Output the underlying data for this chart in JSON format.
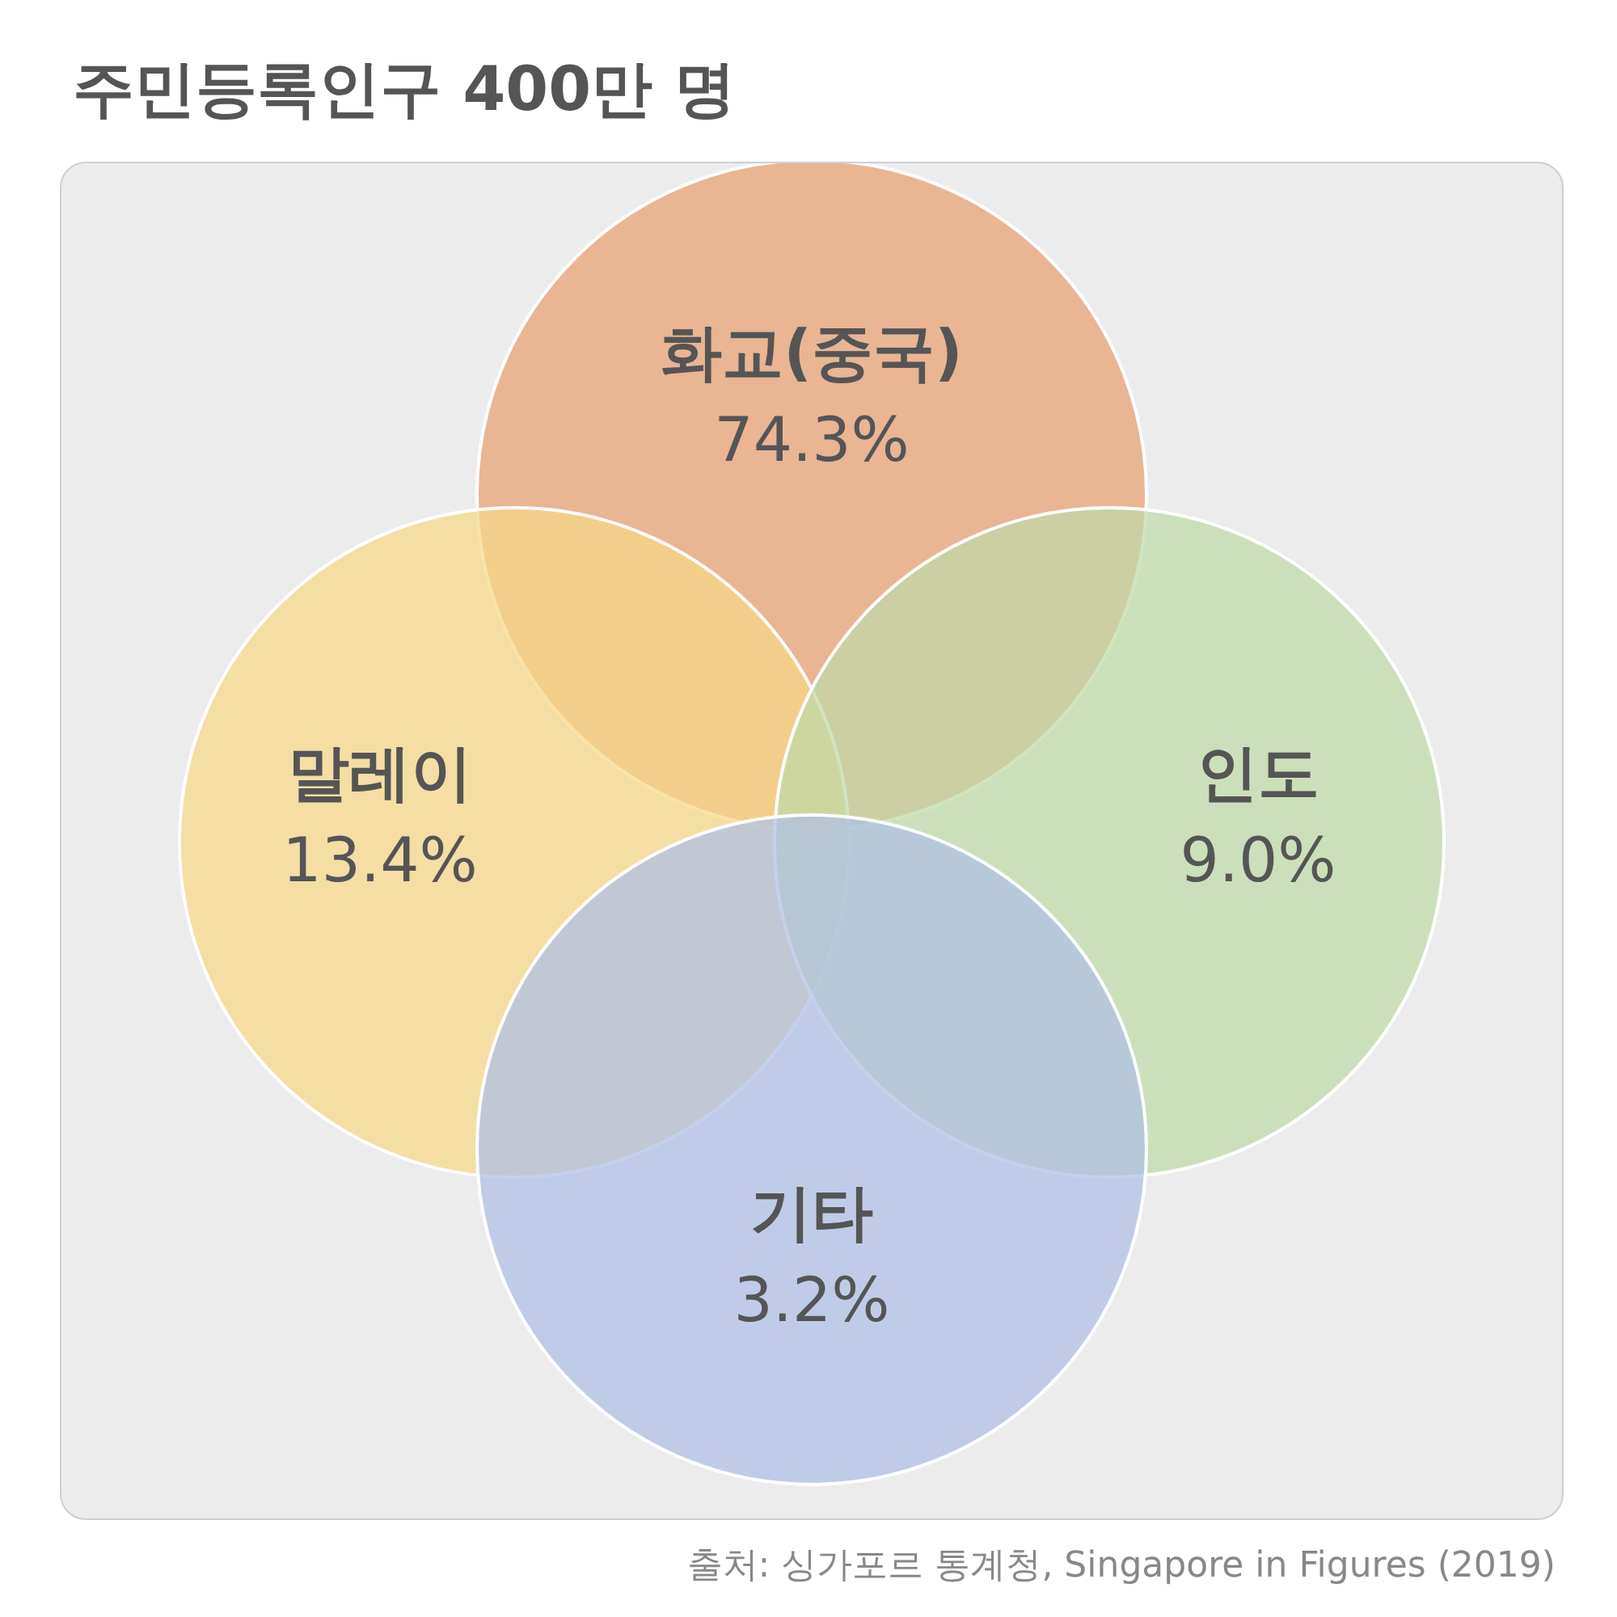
{
  "chart_data": {
    "type": "other",
    "title": "주민등록인구 400만 명",
    "categories": [
      "화교(중국)",
      "말레이",
      "인도",
      "기타"
    ],
    "values": [
      74.3,
      13.4,
      9.0,
      3.2
    ],
    "value_labels": [
      "74.3%",
      "13.4%",
      "9.0%",
      "3.2%"
    ],
    "colors": [
      "#e8a070",
      "#f6d888",
      "#bfdaa8",
      "#aebfe4"
    ],
    "annotations": [
      "출처: 싱가포르 통계청, Singapore in Figures (2019)"
    ]
  }
}
